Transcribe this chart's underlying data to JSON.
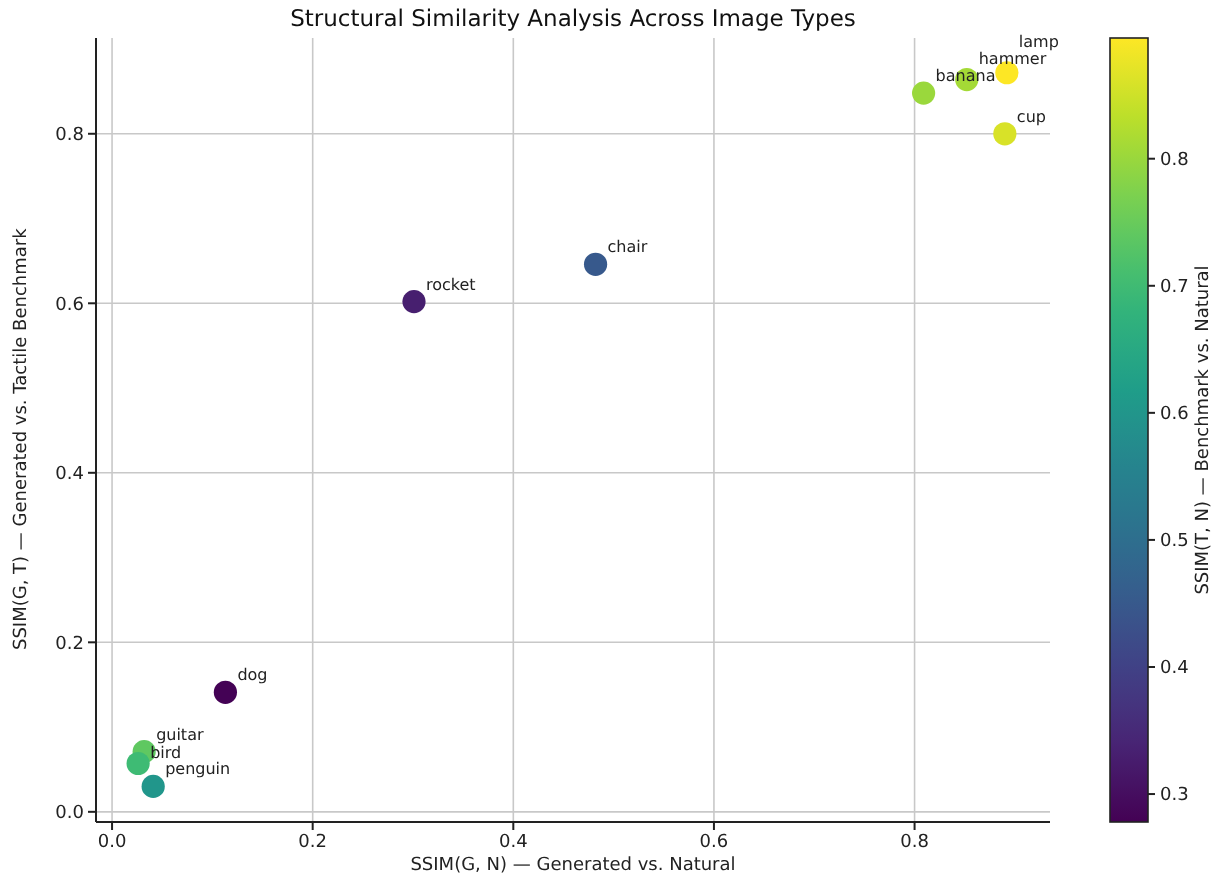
{
  "chart_data": {
    "type": "scatter",
    "title": "Structural Similarity Analysis Across Image Types",
    "xlabel": "SSIM(G, N) — Generated vs. Natural",
    "ylabel": "SSIM(G, T) — Generated vs. Tactile Benchmark",
    "clabel": "SSIM(T, N) — Benchmark vs. Natural",
    "x": [
      0.113,
      0.032,
      0.026,
      0.041,
      0.301,
      0.482,
      0.809,
      0.852,
      0.892,
      0.89
    ],
    "values": [
      0.141,
      0.071,
      0.057,
      0.03,
      0.602,
      0.646,
      0.848,
      0.864,
      0.872,
      0.8
    ],
    "cvalues": [
      0.28,
      0.74,
      0.7,
      0.6,
      0.33,
      0.45,
      0.8,
      0.81,
      0.895,
      0.86
    ],
    "annotations": [
      {
        "text": "dog",
        "x": 0.113,
        "y": 0.141
      },
      {
        "text": "guitar",
        "x": 0.032,
        "y": 0.071
      },
      {
        "text": "bird",
        "x": 0.026,
        "y": 0.057
      },
      {
        "text": "penguin",
        "x": 0.041,
        "y": 0.03
      },
      {
        "text": "rocket",
        "x": 0.301,
        "y": 0.602
      },
      {
        "text": "chair",
        "x": 0.482,
        "y": 0.646
      },
      {
        "text": "banana",
        "x": 0.809,
        "y": 0.848
      },
      {
        "text": "hammer",
        "x": 0.852,
        "y": 0.864
      },
      {
        "text": "lamp",
        "x": 0.892,
        "y": 0.872
      },
      {
        "text": "cup",
        "x": 0.89,
        "y": 0.8
      }
    ],
    "xlim": [
      -0.016,
      0.935
    ],
    "xticks": [
      {
        "value": 0,
        "label": "0.0"
      },
      0.2,
      0.4,
      0.6,
      0.8
    ],
    "ylim": [
      -0.012,
      0.913
    ],
    "yticks": [
      {
        "value": 0,
        "label": "0.0"
      },
      0.2,
      0.4,
      0.6,
      0.8
    ],
    "clim": [
      0.278,
      0.895
    ],
    "cticks": [
      0.3,
      0.4,
      0.5,
      0.6,
      0.7,
      0.8
    ],
    "grid": true,
    "marker": "circle"
  }
}
